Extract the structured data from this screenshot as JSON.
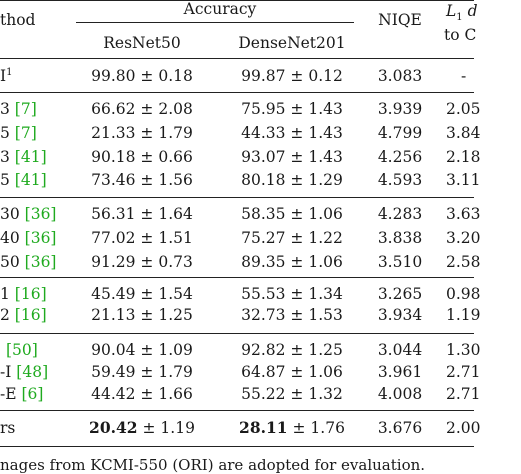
{
  "header": {
    "method": "thod",
    "accuracy": "Accuracy",
    "resnet": "ResNet50",
    "densenet": "DenseNet201",
    "niqe": "NIQE",
    "l1_prefix": "L",
    "l1_sub": "1",
    "l1_rest": " d",
    "l1_line2": "to C"
  },
  "rows": [
    {
      "method": "I",
      "method_sup": "1",
      "cite": "",
      "res": "99.80 ± 0.18",
      "den": "99.87 ± 0.12",
      "niqe": "3.083",
      "l1": "-"
    },
    {
      "method": "3 ",
      "cite": "[7]",
      "res": "66.62 ± 2.08",
      "den": "75.95 ± 1.43",
      "niqe": "3.939",
      "l1": "2.05"
    },
    {
      "method": "5 ",
      "cite": "[7]",
      "res": "21.33 ± 1.79",
      "den": "44.33 ± 1.43",
      "niqe": "4.799",
      "l1": "3.84"
    },
    {
      "method": "3 ",
      "cite": "[41]",
      "res": "90.18 ± 0.66",
      "den": "93.07 ± 1.43",
      "niqe": "4.256",
      "l1": "2.18"
    },
    {
      "method": "5 ",
      "cite": "[41]",
      "res": "73.46 ± 1.56",
      "den": "80.18 ± 1.29",
      "niqe": "4.593",
      "l1": "3.11"
    },
    {
      "method": "30 ",
      "cite": "[36]",
      "res": "56.31 ± 1.64",
      "den": "58.35 ± 1.06",
      "niqe": "4.283",
      "l1": "3.63"
    },
    {
      "method": "40 ",
      "cite": "[36]",
      "res": "77.02 ± 1.51",
      "den": "75.27 ± 1.22",
      "niqe": "3.838",
      "l1": "3.20"
    },
    {
      "method": "50 ",
      "cite": "[36]",
      "res": "91.29 ± 0.73",
      "den": "89.35 ± 1.06",
      "niqe": "3.510",
      "l1": "2.58"
    },
    {
      "method": "1 ",
      "cite": "[16]",
      "res": "45.49 ± 1.54",
      "den": "55.53 ± 1.34",
      "niqe": "3.265",
      "l1": "0.98"
    },
    {
      "method": "2 ",
      "cite": "[16]",
      "res": "21.13 ± 1.25",
      "den": "32.73 ± 1.53",
      "niqe": "3.934",
      "l1": "1.19"
    },
    {
      "method": "",
      "cite": "[50]",
      "res": "90.04 ± 1.09",
      "den": "92.82 ± 1.25",
      "niqe": "3.044",
      "l1": "1.30"
    },
    {
      "method": "-I ",
      "cite": "[48]",
      "res": "59.49 ± 1.79",
      "den": "64.87 ± 1.06",
      "niqe": "3.961",
      "l1": "2.71"
    },
    {
      "method": "-E ",
      "cite": "[6]",
      "res": "44.42 ± 1.66",
      "den": "55.22 ± 1.32",
      "niqe": "4.008",
      "l1": "2.71"
    },
    {
      "method": "rs",
      "cite": "",
      "res_bold": "20.42",
      "res_rest": " ± 1.19",
      "den_bold": "28.11",
      "den_rest": " ± 1.76",
      "niqe": "3.676",
      "l1": "2.00"
    }
  ],
  "footnote": "nages from KCMI-550 (ORI) are adopted for evaluation."
}
